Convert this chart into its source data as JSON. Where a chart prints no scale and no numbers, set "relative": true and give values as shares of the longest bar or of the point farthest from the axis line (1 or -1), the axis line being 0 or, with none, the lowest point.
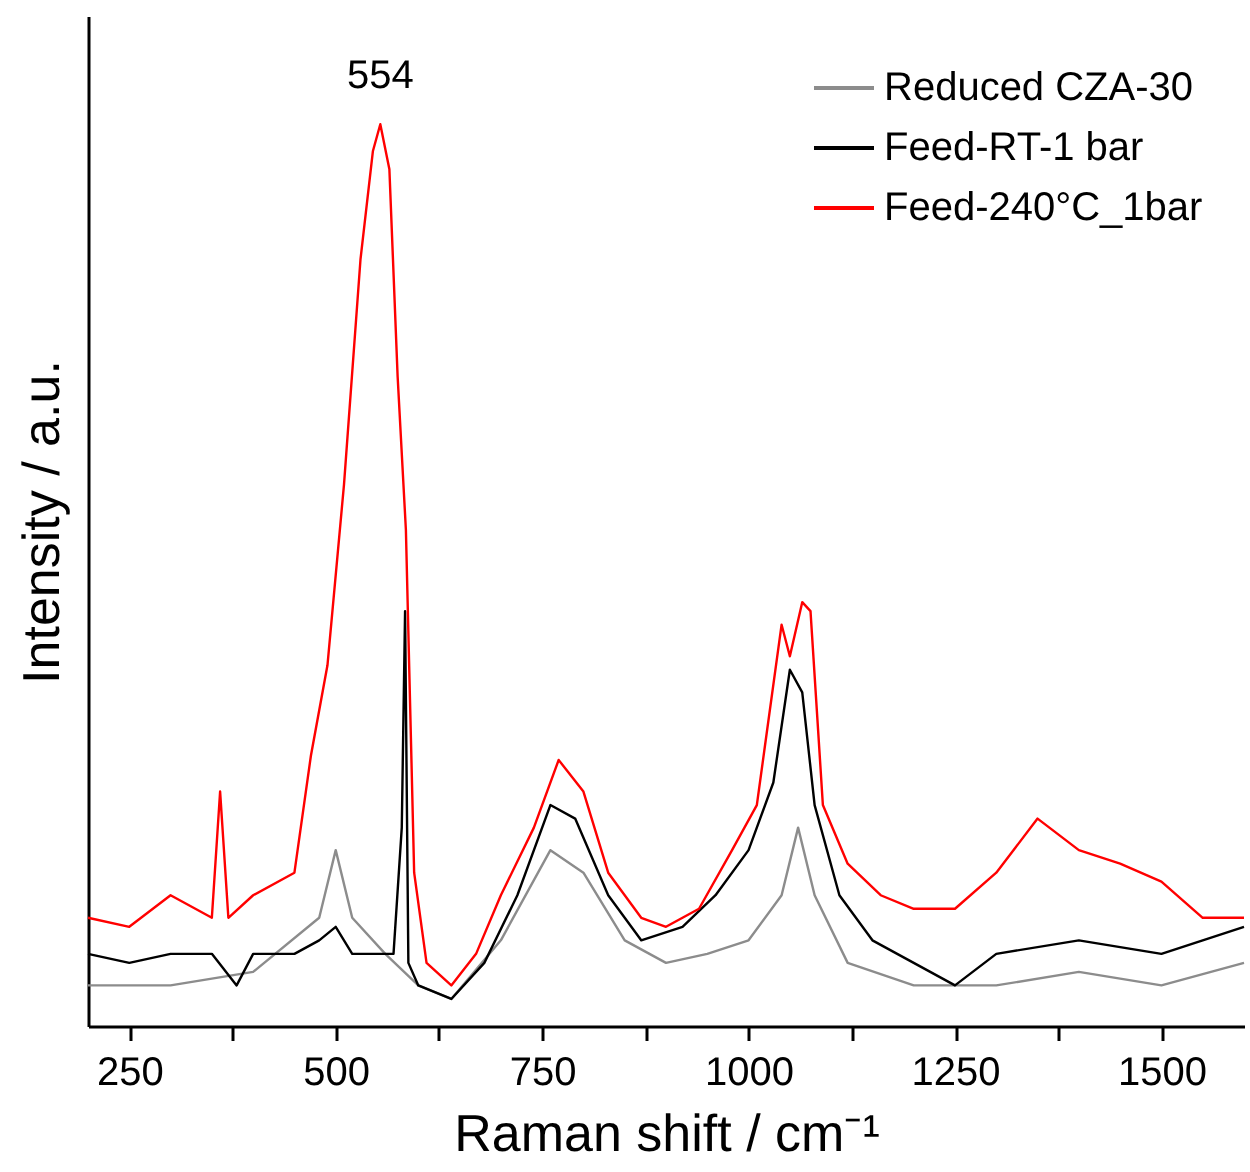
{
  "chart_data": {
    "type": "line",
    "xlabel": "Raman shift / cm⁻¹",
    "ylabel": "Intensity / a.u.",
    "relative": true,
    "legend": "top right",
    "xlim": [
      200,
      1600
    ],
    "xticks": [
      250,
      {
        "value": 375,
        "label": null
      },
      500,
      {
        "value": 625,
        "label": null
      },
      750,
      {
        "value": 875,
        "label": null
      },
      1000,
      {
        "value": 1125,
        "label": null
      },
      1250,
      {
        "value": 1375,
        "label": null
      },
      1500
    ],
    "annotations": [
      {
        "text": "554",
        "x": 554,
        "y": 1
      }
    ],
    "series": [
      {
        "name": "Reduced CZA-30",
        "color": "#8c8c8c",
        "x": [
          200,
          300,
          400,
          480,
          500,
          520,
          560,
          600,
          640,
          700,
          760,
          800,
          850,
          900,
          950,
          1000,
          1040,
          1060,
          1080,
          1120,
          1200,
          1300,
          1400,
          1500,
          1600
        ],
        "values": [
          0.045,
          0.045,
          0.06,
          0.12,
          0.195,
          0.12,
          0.08,
          0.045,
          0.03,
          0.095,
          0.195,
          0.17,
          0.095,
          0.07,
          0.08,
          0.095,
          0.145,
          0.22,
          0.145,
          0.07,
          0.045,
          0.045,
          0.06,
          0.045,
          0.07
        ]
      },
      {
        "name": "Feed-RT-1 bar",
        "color": "#000000",
        "x": [
          200,
          250,
          300,
          350,
          380,
          400,
          450,
          480,
          500,
          520,
          550,
          570,
          580,
          584,
          588,
          600,
          640,
          680,
          720,
          760,
          790,
          830,
          870,
          920,
          960,
          1000,
          1030,
          1050,
          1065,
          1080,
          1110,
          1150,
          1200,
          1250,
          1300,
          1400,
          1500,
          1600
        ],
        "values": [
          0.08,
          0.07,
          0.08,
          0.08,
          0.045,
          0.08,
          0.08,
          0.095,
          0.11,
          0.08,
          0.08,
          0.08,
          0.22,
          0.46,
          0.07,
          0.045,
          0.03,
          0.07,
          0.145,
          0.245,
          0.23,
          0.145,
          0.095,
          0.11,
          0.145,
          0.195,
          0.27,
          0.395,
          0.37,
          0.245,
          0.145,
          0.095,
          0.07,
          0.045,
          0.08,
          0.095,
          0.08,
          0.11
        ]
      },
      {
        "name": "Feed-240°C_1bar",
        "color": "#ff0000",
        "x": [
          200,
          250,
          300,
          350,
          360,
          370,
          400,
          450,
          470,
          490,
          510,
          530,
          545,
          554,
          565,
          575,
          585,
          595,
          610,
          640,
          670,
          700,
          740,
          770,
          800,
          830,
          870,
          900,
          940,
          980,
          1010,
          1040,
          1050,
          1065,
          1075,
          1090,
          1120,
          1160,
          1200,
          1250,
          1300,
          1350,
          1400,
          1450,
          1500,
          1550,
          1600
        ],
        "values": [
          0.12,
          0.11,
          0.145,
          0.12,
          0.26,
          0.12,
          0.145,
          0.17,
          0.3,
          0.4,
          0.6,
          0.85,
          0.97,
          1,
          0.95,
          0.72,
          0.55,
          0.17,
          0.07,
          0.045,
          0.08,
          0.145,
          0.22,
          0.295,
          0.26,
          0.17,
          0.12,
          0.11,
          0.13,
          0.195,
          0.245,
          0.445,
          0.41,
          0.47,
          0.46,
          0.245,
          0.18,
          0.145,
          0.13,
          0.13,
          0.17,
          0.23,
          0.195,
          0.18,
          0.16,
          0.12,
          0.12
        ]
      }
    ]
  }
}
